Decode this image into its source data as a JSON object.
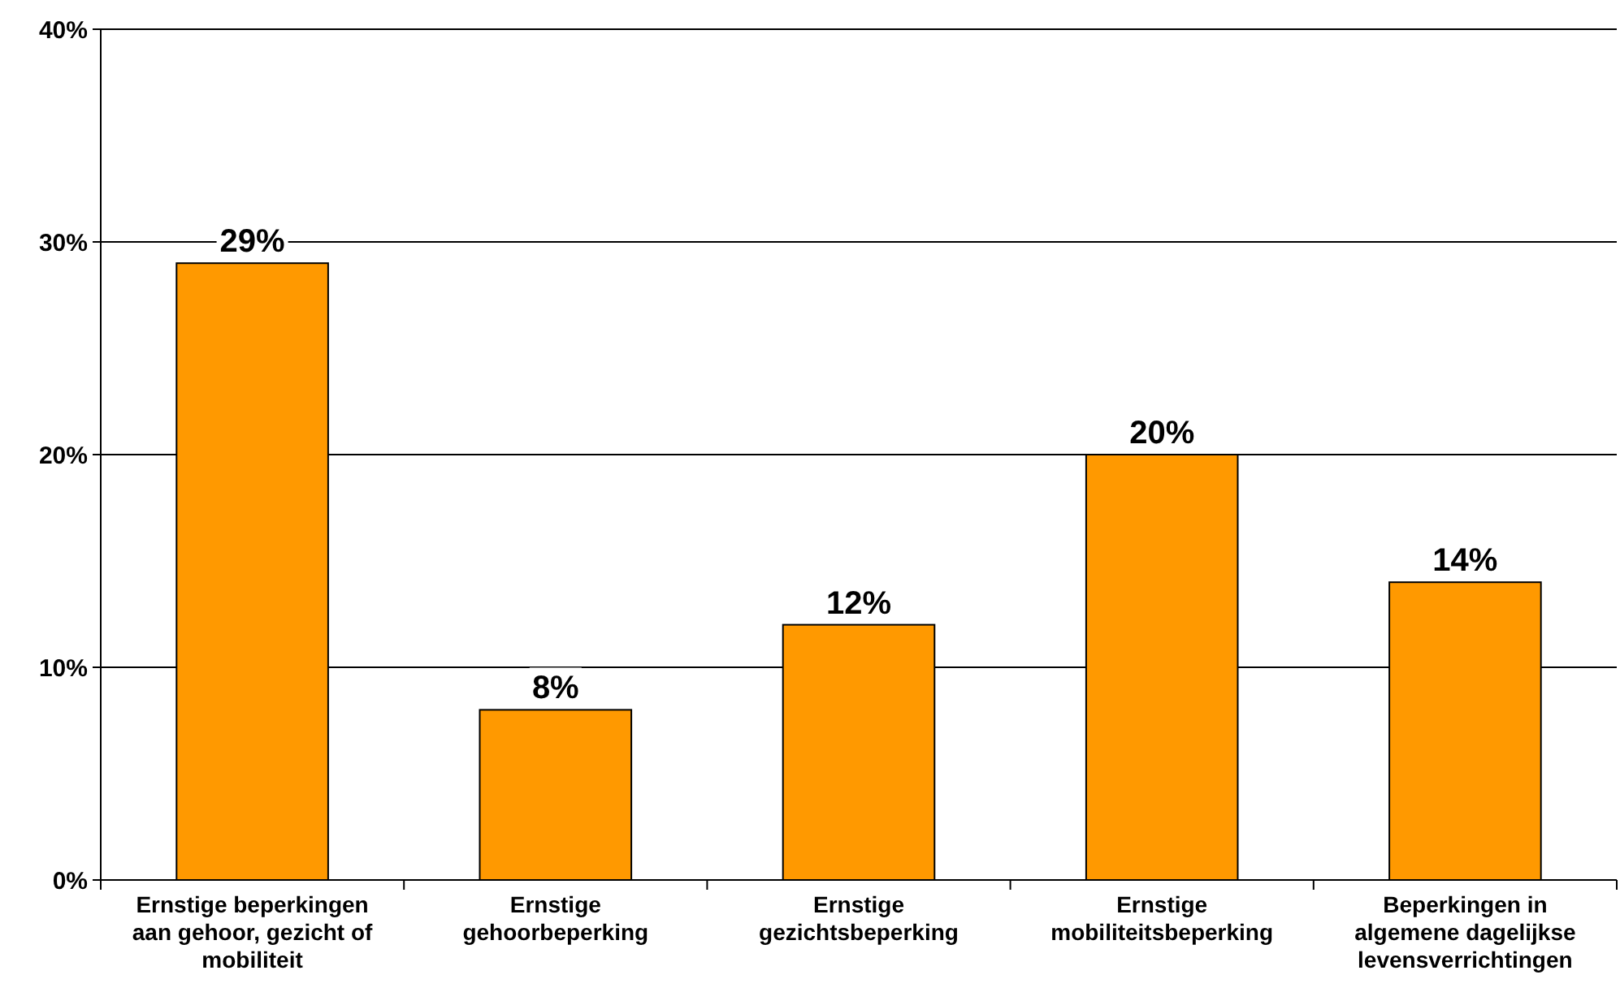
{
  "chart_data": {
    "type": "bar",
    "categories": [
      "Ernstige beperkingen aan gehoor, gezicht of mobiliteit",
      "Ernstige gehoorbeperking",
      "Ernstige gezichtsbeperking",
      "Ernstige mobiliteitsbeperking",
      "Beperkingen in algemene dagelijkse levensverrichtingen"
    ],
    "values": [
      29,
      8,
      12,
      20,
      14
    ],
    "value_labels": [
      "29%",
      "8%",
      "12%",
      "20%",
      "14%"
    ],
    "color": "#ff9900",
    "ylim": [
      0,
      40
    ],
    "yticks": [
      {
        "value": 0,
        "label": "0%"
      },
      {
        "value": 10,
        "label": "10%"
      },
      {
        "value": 20,
        "label": "20%"
      },
      {
        "value": 30,
        "label": "30%"
      },
      {
        "value": 40,
        "label": "40%"
      }
    ],
    "grid": "y"
  }
}
